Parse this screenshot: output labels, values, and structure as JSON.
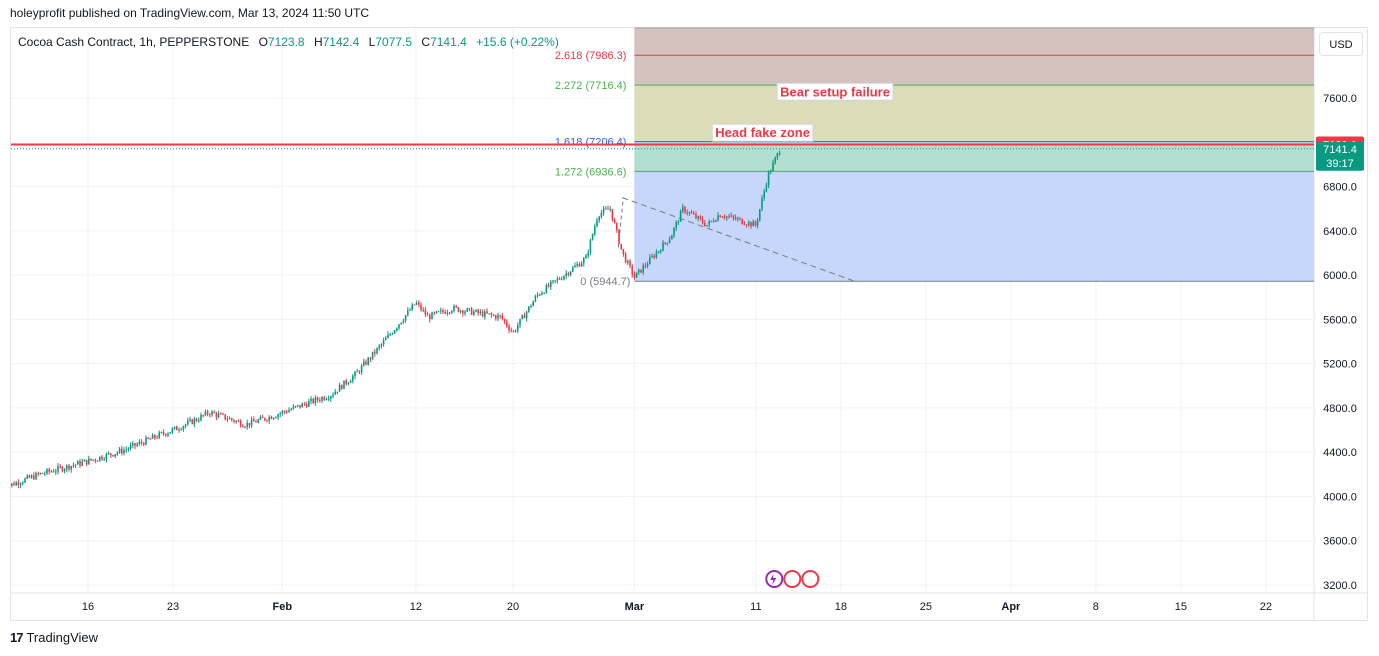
{
  "header": {
    "publish_line": "holeyprofit published on TradingView.com, Mar 13, 2024 11:50 UTC"
  },
  "legend": {
    "symbol": "Cocoa Cash Contract, 1h, PEPPERSTONE",
    "open_label": "O",
    "open": "7123.8",
    "high_label": "H",
    "high": "7142.4",
    "low_label": "L",
    "low": "7077.5",
    "close_label": "C",
    "close": "7141.4",
    "change": "+15.6 (+0.22%)"
  },
  "currency_button": "USD",
  "footer": {
    "logo": "TradingView"
  },
  "colors": {
    "up": "#089981",
    "down": "#f23645",
    "red_line": "#f23645",
    "box_blue": "#c7d6fb",
    "box_green": "#b2dfd0",
    "box_olive": "#dcdcb9",
    "box_brown": "#d4c2be"
  },
  "chart_data": {
    "type": "candlestick",
    "title": "Cocoa Cash Contract, 1h, PEPPERSTONE",
    "currency": "USD",
    "ylim": [
      3100,
      8700
    ],
    "y_ticks": [
      "7600.0",
      "6800.0",
      "6400.0",
      "6000.0",
      "5600.0",
      "5200.0",
      "4800.0",
      "4400.0",
      "4000.0",
      "3600.0",
      "3200.0"
    ],
    "y_tick_values": [
      7600,
      6800,
      6400,
      6000,
      5600,
      5200,
      4800,
      4400,
      4000,
      3600,
      3200
    ],
    "x_ticks": [
      "16",
      "23",
      "Feb",
      "12",
      "20",
      "Mar",
      "11",
      "18",
      "25",
      "Apr",
      "8",
      "15",
      "22"
    ],
    "x_tick_dates": [
      "2024-01-16",
      "2024-01-23",
      "2024-02-01",
      "2024-02-12",
      "2024-02-20",
      "2024-03-01",
      "2024-03-11",
      "2024-03-18",
      "2024-03-25",
      "2024-04-01",
      "2024-04-08",
      "2024-04-15",
      "2024-04-22"
    ],
    "price_path": [
      [
        "2024-01-09",
        4080
      ],
      [
        "2024-01-12",
        4200
      ],
      [
        "2024-01-16",
        4320
      ],
      [
        "2024-01-19",
        4420
      ],
      [
        "2024-01-22",
        4560
      ],
      [
        "2024-01-23",
        4600
      ],
      [
        "2024-01-25",
        4700
      ],
      [
        "2024-01-26",
        4760
      ],
      [
        "2024-01-29",
        4650
      ],
      [
        "2024-01-31",
        4720
      ],
      [
        "2024-02-01",
        4760
      ],
      [
        "2024-02-05",
        4920
      ],
      [
        "2024-02-07",
        5100
      ],
      [
        "2024-02-09",
        5350
      ],
      [
        "2024-02-12",
        5750
      ],
      [
        "2024-02-13",
        5620
      ],
      [
        "2024-02-15",
        5700
      ],
      [
        "2024-02-19",
        5620
      ],
      [
        "2024-02-20",
        5480
      ],
      [
        "2024-02-22",
        5820
      ],
      [
        "2024-02-26",
        6150
      ],
      [
        "2024-02-27",
        6550
      ],
      [
        "2024-02-28",
        6600
      ],
      [
        "2024-02-29",
        6200
      ],
      [
        "2024-03-01",
        5980
      ],
      [
        "2024-03-04",
        6350
      ],
      [
        "2024-03-05",
        6600
      ],
      [
        "2024-03-07",
        6450
      ],
      [
        "2024-03-08",
        6550
      ],
      [
        "2024-03-11",
        6450
      ],
      [
        "2024-03-12",
        6900
      ],
      [
        "2024-03-13",
        7141.4
      ]
    ],
    "last_price": {
      "value": 7141.4,
      "label": "7141.4",
      "countdown": "39:17"
    },
    "red_level": {
      "value": 7180.1,
      "label": "7180.1"
    },
    "fib_levels": [
      {
        "label": "2.618 (7986.3)",
        "value": 7986.3,
        "color": "#f23645"
      },
      {
        "label": "2.272 (7716.4)",
        "value": 7716.4,
        "color": "#4caf50"
      },
      {
        "label": "1.618 (7206.4)",
        "value": 7206.4,
        "color": "#2962ff"
      },
      {
        "label": "1.272 (6936.6)",
        "value": 6936.6,
        "color": "#4caf50"
      },
      {
        "label": "0 (5944.7)",
        "value": 5944.7,
        "color": "#787b86"
      }
    ],
    "annotations": [
      {
        "text": "Bear setup failure",
        "color": "#f23645"
      },
      {
        "text": "Head fake zone",
        "color": "#f23645"
      }
    ],
    "zone_start_date": "2024-03-01",
    "dashed_trendline": {
      "from": [
        "2024-02-29",
        6700
      ],
      "to": [
        "2024-03-19",
        5950
      ]
    }
  }
}
